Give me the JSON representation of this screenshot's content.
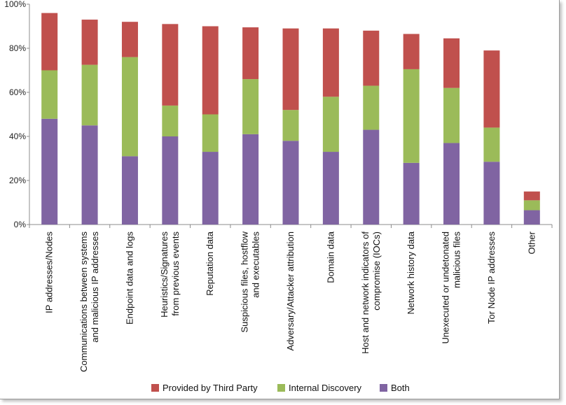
{
  "chart_data": {
    "type": "bar",
    "stacked": true,
    "ylim": [
      0,
      100
    ],
    "y_ticks": [
      "0%",
      "20%",
      "40%",
      "60%",
      "80%",
      "100%"
    ],
    "y_tick_values": [
      0,
      20,
      40,
      60,
      80,
      100
    ],
    "grid": false,
    "legend_position": "bottom",
    "categories": [
      [
        "IP addresses/Nodes"
      ],
      [
        "Communications between systems",
        "and malicious IP addresses"
      ],
      [
        "Endpoint data and logs"
      ],
      [
        "Heuristics/Signatures",
        "from previous events"
      ],
      [
        "Reputation data"
      ],
      [
        "Suspicious files, hostflow",
        "and executables"
      ],
      [
        "Adversary/Attacker attribution"
      ],
      [
        "Domain data"
      ],
      [
        "Host and network indicators of",
        "compromise (IOCs)"
      ],
      [
        "Network history data"
      ],
      [
        "Unexecuted or undetonated",
        "malicious files"
      ],
      [
        "Tor Node IP addresses"
      ],
      [
        "Other"
      ]
    ],
    "series": [
      {
        "name": "Both",
        "color": "#8064a2",
        "values": [
          48,
          45,
          31,
          40,
          33,
          41,
          38,
          33,
          43,
          28,
          37,
          28.5,
          6.5
        ]
      },
      {
        "name": "Internal Discovery",
        "color": "#9bbb59",
        "values": [
          22,
          27.5,
          45,
          14,
          17,
          25,
          14,
          25,
          20,
          42.5,
          25,
          15.5,
          4.5
        ]
      },
      {
        "name": "Provided by Third Party",
        "color": "#c0504d",
        "values": [
          26,
          20.5,
          16,
          37,
          40,
          23.5,
          37,
          31,
          25,
          16,
          22.5,
          35,
          4
        ]
      }
    ],
    "legend": [
      {
        "name": "Provided by Third Party",
        "color": "#c0504d"
      },
      {
        "name": "Internal Discovery",
        "color": "#9bbb59"
      },
      {
        "name": "Both",
        "color": "#8064a2"
      }
    ]
  }
}
